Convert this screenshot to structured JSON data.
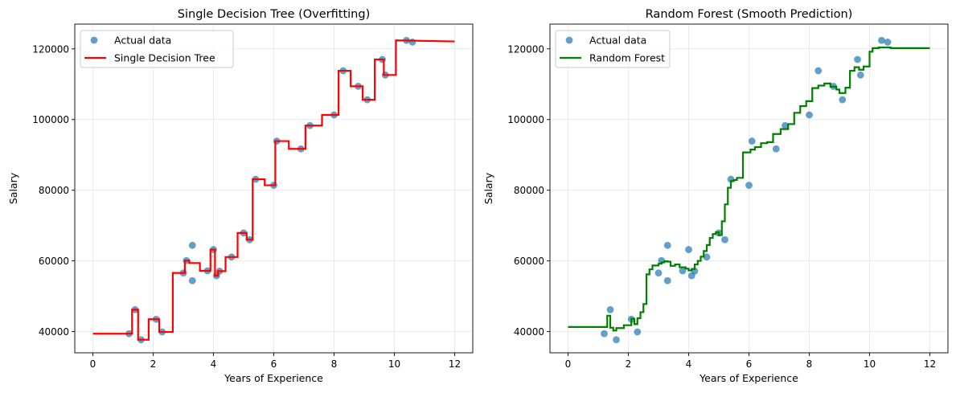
{
  "chart_data": [
    {
      "type": "line",
      "title": "Single Decision Tree (Overfitting)",
      "xlabel": "Years of Experience",
      "ylabel": "Salary",
      "xlim": [
        -0.6,
        12.6
      ],
      "ylim": [
        34000,
        127000
      ],
      "xticks": [
        0,
        2,
        4,
        6,
        8,
        10,
        12
      ],
      "yticks": [
        40000,
        60000,
        80000,
        100000,
        120000
      ],
      "xtick_labels": [
        "0",
        "2",
        "4",
        "6",
        "8",
        "10",
        "12"
      ],
      "ytick_labels": [
        "40000",
        "60000",
        "80000",
        "100000",
        "120000"
      ],
      "grid": true,
      "legend_position": "top-left",
      "scatter": {
        "name": "Actual data",
        "color": "#1f77b4",
        "x": [
          1.2,
          1.4,
          1.6,
          2.1,
          2.3,
          3.0,
          3.1,
          3.3,
          3.3,
          3.8,
          4.0,
          4.1,
          4.2,
          4.6,
          5.0,
          5.2,
          5.4,
          6.0,
          6.1,
          6.9,
          7.2,
          8.0,
          8.3,
          8.8,
          9.1,
          9.6,
          9.7,
          10.4,
          10.6
        ],
        "y": [
          39400,
          46200,
          37700,
          43500,
          39900,
          56600,
          60100,
          54400,
          64400,
          57200,
          63200,
          55800,
          57100,
          61100,
          67900,
          66000,
          83100,
          81400,
          93900,
          91700,
          98300,
          101300,
          113800,
          109400,
          105600,
          117000,
          112600,
          122400,
          121900
        ]
      },
      "line": {
        "name": "Single Decision Tree",
        "color": "#ff0000",
        "drawstyle": "steps",
        "x": [
          0,
          1.3,
          1.3,
          1.5,
          1.5,
          1.85,
          1.85,
          2.2,
          2.2,
          2.65,
          2.65,
          3.05,
          3.05,
          3.2,
          3.2,
          3.55,
          3.55,
          3.9,
          3.9,
          4.05,
          4.05,
          4.15,
          4.15,
          4.4,
          4.4,
          4.8,
          4.8,
          5.1,
          5.1,
          5.3,
          5.3,
          5.7,
          5.7,
          6.05,
          6.05,
          6.5,
          6.5,
          7.05,
          7.05,
          7.6,
          7.6,
          8.15,
          8.15,
          8.55,
          8.55,
          8.95,
          8.95,
          9.35,
          9.35,
          9.65,
          9.65,
          10.05,
          10.05,
          12
        ],
        "y": [
          39400,
          39400,
          46200,
          46200,
          37700,
          37700,
          43500,
          43500,
          39900,
          39900,
          56600,
          56600,
          60100,
          60100,
          59400,
          59400,
          57200,
          57200,
          63200,
          63200,
          55800,
          55800,
          57100,
          57100,
          61100,
          61100,
          67900,
          67900,
          66000,
          66000,
          83100,
          83100,
          81400,
          81400,
          93900,
          93900,
          91700,
          91700,
          98300,
          98300,
          101300,
          101300,
          113800,
          113800,
          109400,
          109400,
          105600,
          105600,
          117000,
          117000,
          112600,
          112600,
          122400,
          122100
        ]
      }
    },
    {
      "type": "line",
      "title": "Random Forest (Smooth Prediction)",
      "xlabel": "Years of Experience",
      "ylabel": "Salary",
      "xlim": [
        -0.6,
        12.6
      ],
      "ylim": [
        34000,
        127000
      ],
      "xticks": [
        0,
        2,
        4,
        6,
        8,
        10,
        12
      ],
      "yticks": [
        40000,
        60000,
        80000,
        100000,
        120000
      ],
      "xtick_labels": [
        "0",
        "2",
        "4",
        "6",
        "8",
        "10",
        "12"
      ],
      "ytick_labels": [
        "40000",
        "60000",
        "80000",
        "100000",
        "120000"
      ],
      "grid": true,
      "legend_position": "top-left",
      "scatter": {
        "name": "Actual data",
        "color": "#1f77b4",
        "x": [
          1.2,
          1.4,
          1.6,
          2.1,
          2.3,
          3.0,
          3.1,
          3.3,
          3.3,
          3.8,
          4.0,
          4.1,
          4.2,
          4.6,
          5.0,
          5.2,
          5.4,
          6.0,
          6.1,
          6.9,
          7.2,
          8.0,
          8.3,
          8.8,
          9.1,
          9.6,
          9.7,
          10.4,
          10.6
        ],
        "y": [
          39400,
          46200,
          37700,
          43500,
          39900,
          56600,
          60100,
          54400,
          64400,
          57200,
          63200,
          55800,
          57100,
          61100,
          67900,
          66000,
          83100,
          81400,
          93900,
          91700,
          98300,
          101300,
          113800,
          109400,
          105600,
          117000,
          112600,
          122400,
          121900
        ]
      },
      "line": {
        "name": "Random Forest",
        "color": "#008000",
        "drawstyle": "steps",
        "x": [
          0,
          1.3,
          1.3,
          1.4,
          1.4,
          1.5,
          1.5,
          1.6,
          1.6,
          1.85,
          1.85,
          2.1,
          2.1,
          2.2,
          2.2,
          2.3,
          2.3,
          2.4,
          2.4,
          2.5,
          2.5,
          2.6,
          2.6,
          2.7,
          2.7,
          2.8,
          2.8,
          3.0,
          3.0,
          3.1,
          3.1,
          3.2,
          3.2,
          3.3,
          3.3,
          3.4,
          3.4,
          3.55,
          3.55,
          3.7,
          3.7,
          3.9,
          3.9,
          4.0,
          4.0,
          4.1,
          4.1,
          4.2,
          4.2,
          4.3,
          4.3,
          4.4,
          4.4,
          4.5,
          4.5,
          4.6,
          4.6,
          4.7,
          4.7,
          4.8,
          4.8,
          4.9,
          4.9,
          5.0,
          5.0,
          5.1,
          5.1,
          5.2,
          5.2,
          5.3,
          5.3,
          5.4,
          5.4,
          5.5,
          5.5,
          5.6,
          5.6,
          5.8,
          5.8,
          6.05,
          6.05,
          6.2,
          6.2,
          6.4,
          6.4,
          6.6,
          6.6,
          6.8,
          6.8,
          7.05,
          7.05,
          7.3,
          7.3,
          7.5,
          7.5,
          7.7,
          7.7,
          7.9,
          7.9,
          8.1,
          8.1,
          8.3,
          8.3,
          8.5,
          8.5,
          8.7,
          8.7,
          8.9,
          8.9,
          9.0,
          9.0,
          9.2,
          9.2,
          9.35,
          9.35,
          9.5,
          9.5,
          9.65,
          9.65,
          9.8,
          9.8,
          10.0,
          10.0,
          10.1,
          10.1,
          10.3,
          10.3,
          10.7,
          10.7,
          12
        ],
        "y": [
          41300,
          41300,
          44500,
          44500,
          41100,
          41100,
          40300,
          40300,
          41000,
          41000,
          41800,
          41800,
          43600,
          43600,
          42100,
          42100,
          43800,
          43800,
          45500,
          45500,
          47800,
          47800,
          56200,
          56200,
          57600,
          57600,
          58700,
          58700,
          59200,
          59200,
          59600,
          59600,
          59900,
          59900,
          59800,
          59800,
          58600,
          58600,
          59000,
          59000,
          58200,
          58200,
          57800,
          57800,
          57300,
          57300,
          57700,
          57700,
          59000,
          59000,
          60000,
          60000,
          61200,
          61200,
          62800,
          62800,
          64500,
          64500,
          66500,
          66500,
          67600,
          67600,
          68100,
          68100,
          67300,
          67300,
          71200,
          71200,
          76000,
          76000,
          80700,
          80700,
          82600,
          82600,
          82900,
          82900,
          83500,
          83500,
          90700,
          90700,
          91500,
          91500,
          92200,
          92200,
          93300,
          93300,
          93600,
          93600,
          95900,
          95900,
          97300,
          97300,
          98700,
          98700,
          101900,
          101900,
          103800,
          103800,
          105200,
          105200,
          108900,
          108900,
          109600,
          109600,
          110200,
          110200,
          109300,
          109300,
          108500,
          108500,
          107500,
          107500,
          109000,
          109000,
          113800,
          113800,
          114800,
          114800,
          114100,
          114100,
          115000,
          115000,
          119200,
          119200,
          120200,
          120200,
          120400,
          120400,
          120200,
          120200
        ]
      }
    }
  ]
}
